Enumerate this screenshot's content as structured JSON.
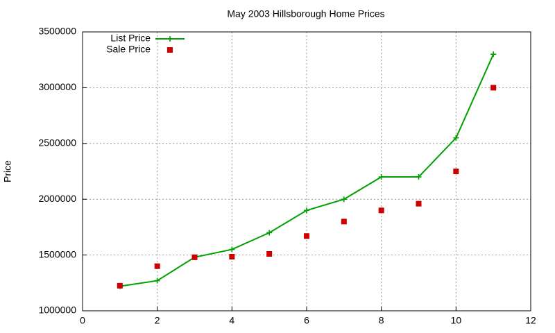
{
  "chart_data": {
    "type": "line",
    "title": "May 2003 Hillsborough Home Prices",
    "y_label": "Price",
    "x": [
      1,
      2,
      3,
      4,
      5,
      6,
      7,
      8,
      9,
      10,
      11
    ],
    "series": [
      {
        "name": "List Price",
        "color": "#00a000",
        "line": true,
        "marker": "plus",
        "values": [
          1220000,
          1270000,
          1480000,
          1550000,
          1700000,
          1900000,
          2000000,
          2200000,
          2200000,
          2550000,
          3300000
        ]
      },
      {
        "name": "Sale Price",
        "color": "#cc0000",
        "line": false,
        "marker": "square",
        "values": [
          1225000,
          1400000,
          1480000,
          1485000,
          1510000,
          1670000,
          1800000,
          1900000,
          1960000,
          2250000,
          3000000
        ]
      }
    ],
    "xlim": [
      0,
      12
    ],
    "xticks": [
      0,
      2,
      4,
      6,
      8,
      10,
      12
    ],
    "ylim": [
      1000000,
      3500000
    ],
    "yticks": [
      1000000,
      1500000,
      2000000,
      2500000,
      3000000,
      3500000
    ],
    "grid": true,
    "legend": "top-left"
  }
}
